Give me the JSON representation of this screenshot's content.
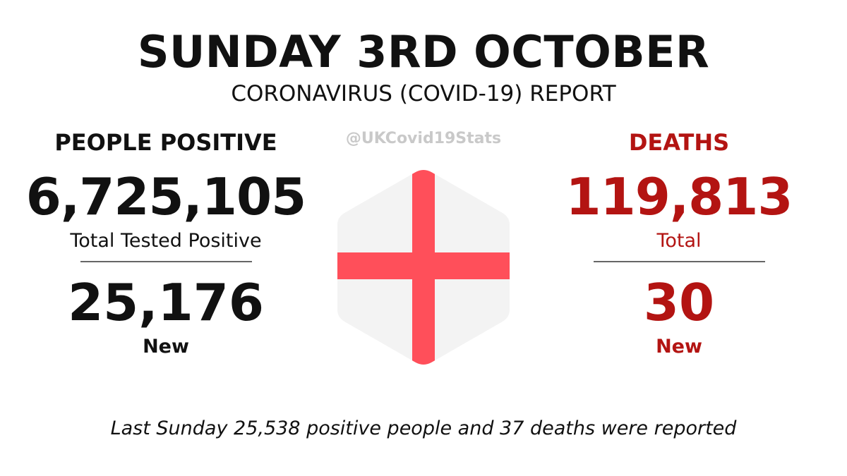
{
  "header": {
    "title": "SUNDAY 3RD OCTOBER",
    "subtitle": "CORONAVIRUS (COVID-19) REPORT"
  },
  "handle": "@UKCovid19Stats",
  "positive": {
    "heading": "PEOPLE POSITIVE",
    "total": "6,725,105",
    "total_label": "Total Tested Positive",
    "new": "25,176",
    "new_label": "New"
  },
  "deaths": {
    "heading": "DEATHS",
    "total": "119,813",
    "total_label": "Total",
    "new": "30",
    "new_label": "New"
  },
  "footer": "Last Sunday 25,538 positive people and 37 deaths were reported",
  "colors": {
    "text_dark": "#111111",
    "deaths_red": "#b31412",
    "flag_cross": "#ff4f5a",
    "flag_field": "#f3f3f3",
    "handle_grey": "#c9c9c9"
  },
  "flag_icon": "england-flag-hexagon-icon"
}
